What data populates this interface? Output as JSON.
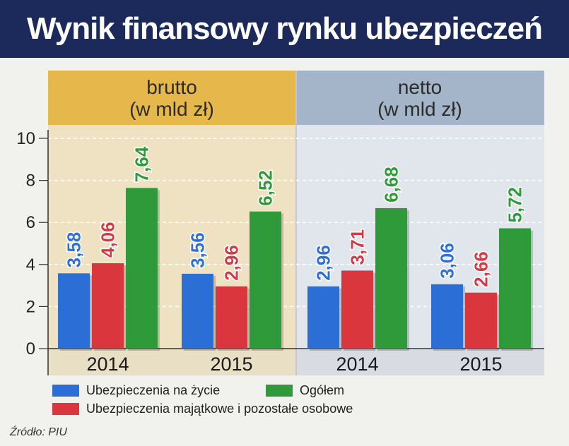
{
  "title": "Wynik finansowy rynku ubezpieczeń",
  "panels": {
    "left": {
      "line1": "brutto",
      "line2": "(w mld zł)"
    },
    "right": {
      "line1": "netto",
      "line2": "(w mld zł)"
    }
  },
  "legend": {
    "life": "Ubezpieczenia na życie",
    "total": "Ogółem",
    "property": "Ubezpieczenia majątkowe i pozostałe osobowe"
  },
  "source": "Źródło: PIU",
  "colors": {
    "life": "#2b6fd6",
    "property": "#d9363e",
    "total": "#2f9a3a",
    "life_label": "#2e6fd8",
    "property_label": "#d43a45",
    "total_label": "#2f9a3a"
  },
  "chart_data": {
    "type": "bar",
    "ylim": [
      0,
      10
    ],
    "yticks": [
      "0",
      "2",
      "4",
      "6",
      "8",
      "10"
    ],
    "groups": [
      {
        "panel": "brutto",
        "year": "2014",
        "values": [
          3.58,
          4.06,
          7.64
        ],
        "labels": [
          "3,58",
          "4,06",
          "7,64"
        ]
      },
      {
        "panel": "brutto",
        "year": "2015",
        "values": [
          3.56,
          2.96,
          6.52
        ],
        "labels": [
          "3,56",
          "2,96",
          "6,52"
        ]
      },
      {
        "panel": "netto",
        "year": "2014",
        "values": [
          2.96,
          3.71,
          6.68
        ],
        "labels": [
          "2,96",
          "3,71",
          "6,68"
        ]
      },
      {
        "panel": "netto",
        "year": "2015",
        "values": [
          3.06,
          2.66,
          5.72
        ],
        "labels": [
          "3,06",
          "2,66",
          "5,72"
        ]
      }
    ],
    "series": [
      {
        "name": "Ubezpieczenia na życie"
      },
      {
        "name": "Ubezpieczenia majątkowe i pozostałe osobowe"
      },
      {
        "name": "Ogółem"
      }
    ]
  }
}
